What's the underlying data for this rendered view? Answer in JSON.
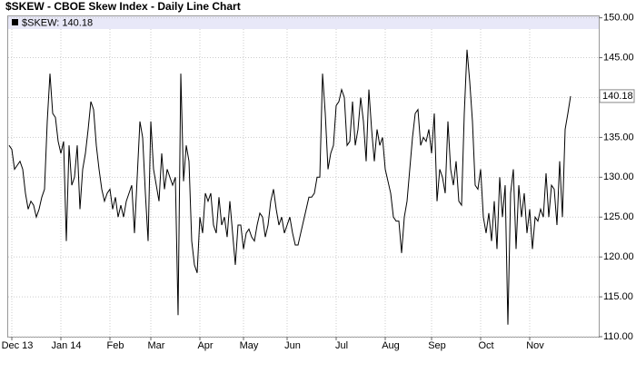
{
  "chart_data": {
    "type": "line",
    "title": "$SKEW - CBOE Skew Index - Daily Line Chart",
    "categories": [
      null,
      null,
      null,
      "Dec 13",
      null,
      null,
      null,
      null,
      null,
      null,
      null,
      null,
      null,
      null,
      null,
      null,
      null,
      null,
      null,
      null,
      null,
      "Jan 14",
      null,
      null,
      null,
      null,
      null,
      null,
      null,
      null,
      null,
      null,
      null,
      null,
      null,
      null,
      null,
      null,
      null,
      "Feb",
      null,
      null,
      null,
      null,
      null,
      null,
      null,
      null,
      null,
      null,
      null,
      null,
      null,
      null,
      "Mar",
      null,
      null,
      null,
      null,
      null,
      null,
      null,
      null,
      null,
      null,
      null,
      null,
      null,
      null,
      null,
      null,
      null,
      "Apr",
      null,
      null,
      null,
      null,
      null,
      null,
      null,
      null,
      null,
      null,
      null,
      null,
      null,
      null,
      null,
      "May",
      null,
      null,
      null,
      null,
      null,
      null,
      null,
      null,
      null,
      null,
      null,
      null,
      null,
      null,
      null,
      "Jun",
      null,
      null,
      null,
      null,
      null,
      null,
      null,
      null,
      null,
      null,
      null,
      null,
      null,
      null,
      null,
      null,
      null,
      "Jul",
      null,
      null,
      null,
      null,
      null,
      null,
      null,
      null,
      null,
      null,
      null,
      null,
      null,
      null,
      null,
      null,
      null,
      "Aug",
      null,
      null,
      null,
      null,
      null,
      null,
      null,
      null,
      null,
      null,
      null,
      null,
      null,
      null,
      null,
      null,
      "Sep",
      null,
      null,
      null,
      null,
      null,
      null,
      null,
      null,
      null,
      null,
      null,
      null,
      null,
      null,
      null,
      null,
      null,
      "Oct",
      null,
      null,
      null,
      null,
      null,
      null,
      null,
      null,
      null,
      null,
      null,
      null,
      null,
      null,
      null,
      null,
      null,
      "Nov",
      null,
      null,
      null,
      null,
      null,
      null,
      null,
      null,
      null,
      null,
      null,
      null,
      null
    ],
    "series": [
      {
        "name": "$SKEW: 140.18",
        "color": "#000000",
        "values": [
          134,
          133.5,
          131,
          131.5,
          132,
          131,
          128,
          126,
          127,
          126.5,
          125,
          126,
          127.5,
          128.5,
          137,
          143,
          138,
          137.5,
          134.5,
          133,
          134.5,
          122,
          134,
          129,
          130,
          134,
          126,
          131,
          133,
          136,
          139.5,
          138.5,
          134,
          131,
          128.5,
          127,
          128,
          128.5,
          126,
          127.5,
          125,
          126.5,
          125,
          127,
          128,
          129,
          123,
          130,
          137,
          135,
          128,
          122,
          137,
          131,
          129,
          127,
          133,
          128.5,
          131,
          130,
          129,
          130,
          112.7,
          143,
          129.5,
          134,
          132,
          122,
          119,
          118,
          125,
          123,
          128,
          127,
          128,
          124,
          123,
          127.5,
          124,
          125,
          122.5,
          127,
          123,
          119,
          124,
          124,
          121,
          123,
          123.5,
          122.5,
          122,
          124,
          125.5,
          125,
          122.5,
          124,
          127,
          128.5,
          126,
          124,
          125,
          123,
          124,
          125,
          123,
          121.5,
          121.5,
          123,
          124.5,
          126,
          127.5,
          127.5,
          128,
          130,
          130,
          143,
          138,
          131,
          133,
          134,
          139,
          139.5,
          141,
          140,
          134,
          134.5,
          139.5,
          134,
          136,
          140,
          137,
          132,
          141,
          136,
          132,
          136,
          134,
          135,
          131,
          129.5,
          128,
          125,
          124.5,
          124.5,
          120.5,
          125,
          127,
          131,
          135,
          138,
          138.5,
          134,
          135,
          134.5,
          136,
          133,
          138,
          127,
          131,
          130,
          128,
          137,
          131,
          129,
          132,
          127,
          126.5,
          138,
          146,
          142,
          137,
          129,
          128.5,
          131,
          125,
          123,
          125.5,
          122,
          127,
          121,
          130,
          125,
          129,
          111.5,
          128,
          131,
          121,
          129,
          125,
          128,
          123,
          126,
          121,
          125,
          124.5,
          126,
          125,
          130.5,
          125,
          129,
          128.5,
          124,
          132,
          125,
          136,
          138,
          140.18
        ]
      }
    ],
    "last_value": 140.18,
    "ylim": [
      110,
      150.3
    ],
    "yticks": [
      {
        "value": 110,
        "label": "110.00"
      },
      {
        "value": 115,
        "label": "115.00"
      },
      {
        "value": 120,
        "label": "120.00"
      },
      {
        "value": 125,
        "label": "125.00"
      },
      {
        "value": 130,
        "label": "130.00"
      },
      {
        "value": 135,
        "label": "135.00"
      },
      {
        "value": 140,
        "label": "140.00"
      },
      {
        "value": 145,
        "label": "145.00"
      },
      {
        "value": 150,
        "label": "150.00"
      }
    ],
    "grid": true
  }
}
